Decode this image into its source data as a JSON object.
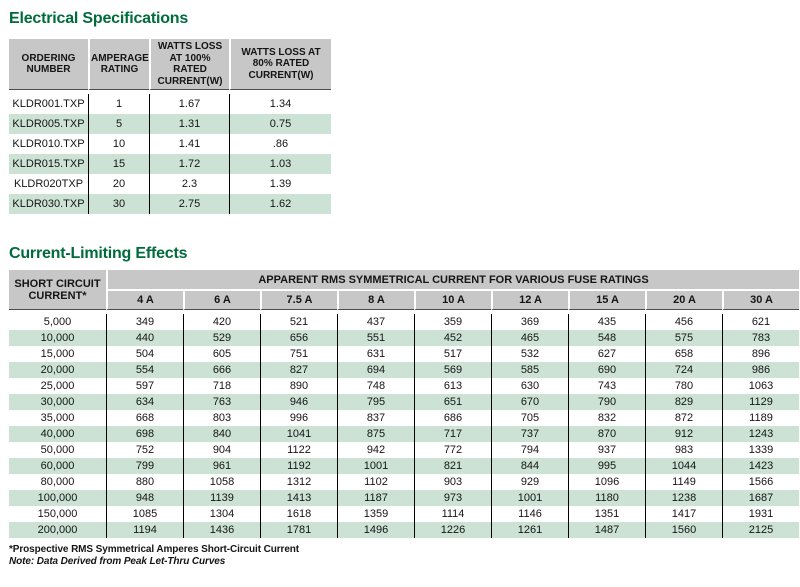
{
  "colors": {
    "title_green": "#006B3C",
    "header_gray": "#C6C7C6",
    "stripe_green": "#CCE2D5"
  },
  "electrical": {
    "title": "Electrical Specifications",
    "columns": [
      "ORDERING NUMBER",
      "AMPERAGE RATING",
      "WATTS LOSS AT 100% RATED CURRENT(W)",
      "WATTS LOSS AT 80% RATED CURRENT(W)"
    ],
    "rows": [
      [
        "KLDR001.TXP",
        "1",
        "1.67",
        "1.34"
      ],
      [
        "KLDR005.TXP",
        "5",
        "1.31",
        "0.75"
      ],
      [
        "KLDR010.TXP",
        "10",
        "1.41",
        ".86"
      ],
      [
        "KLDR015.TXP",
        "15",
        "1.72",
        "1.03"
      ],
      [
        "KLDR020TXP",
        "20",
        "2.3",
        "1.39"
      ],
      [
        "KLDR030.TXP",
        "30",
        "2.75",
        "1.62"
      ]
    ]
  },
  "current_limiting": {
    "title": "Current-Limiting Effects",
    "row_header": "SHORT CIRCUIT CURRENT*",
    "span_header": "APPARENT RMS SYMMETRICAL CURRENT FOR VARIOUS FUSE RATINGS",
    "fuse_ratings": [
      "4 A",
      "6 A",
      "7.5 A",
      "8 A",
      "10 A",
      "12 A",
      "15 A",
      "20 A",
      "30 A"
    ],
    "rows": [
      {
        "short_circuit": "5,000",
        "values": [
          349,
          420,
          521,
          437,
          359,
          369,
          435,
          456,
          621
        ]
      },
      {
        "short_circuit": "10,000",
        "values": [
          440,
          529,
          656,
          551,
          452,
          465,
          548,
          575,
          783
        ]
      },
      {
        "short_circuit": "15,000",
        "values": [
          504,
          605,
          751,
          631,
          517,
          532,
          627,
          658,
          896
        ]
      },
      {
        "short_circuit": "20,000",
        "values": [
          554,
          666,
          827,
          694,
          569,
          585,
          690,
          724,
          986
        ]
      },
      {
        "short_circuit": "25,000",
        "values": [
          597,
          718,
          890,
          748,
          613,
          630,
          743,
          780,
          1063
        ]
      },
      {
        "short_circuit": "30,000",
        "values": [
          634,
          763,
          946,
          795,
          651,
          670,
          790,
          829,
          1129
        ]
      },
      {
        "short_circuit": "35,000",
        "values": [
          668,
          803,
          996,
          837,
          686,
          705,
          832,
          872,
          1189
        ]
      },
      {
        "short_circuit": "40,000",
        "values": [
          698,
          840,
          1041,
          875,
          717,
          737,
          870,
          912,
          1243
        ]
      },
      {
        "short_circuit": "50,000",
        "values": [
          752,
          904,
          1122,
          942,
          772,
          794,
          937,
          983,
          1339
        ]
      },
      {
        "short_circuit": "60,000",
        "values": [
          799,
          961,
          1192,
          1001,
          821,
          844,
          995,
          1044,
          1423
        ]
      },
      {
        "short_circuit": "80,000",
        "values": [
          880,
          1058,
          1312,
          1102,
          903,
          929,
          1096,
          1149,
          1566
        ]
      },
      {
        "short_circuit": "100,000",
        "values": [
          948,
          1139,
          1413,
          1187,
          973,
          1001,
          1180,
          1238,
          1687
        ]
      },
      {
        "short_circuit": "150,000",
        "values": [
          1085,
          1304,
          1618,
          1359,
          1114,
          1146,
          1351,
          1417,
          1931
        ]
      },
      {
        "short_circuit": "200,000",
        "values": [
          1194,
          1436,
          1781,
          1496,
          1226,
          1261,
          1487,
          1560,
          2125
        ]
      }
    ]
  },
  "footnotes": {
    "line1": "*Prospective RMS Symmetrical Amperes Short-Circuit Current",
    "line2": "Note: Data Derived from Peak Let-Thru Curves"
  }
}
